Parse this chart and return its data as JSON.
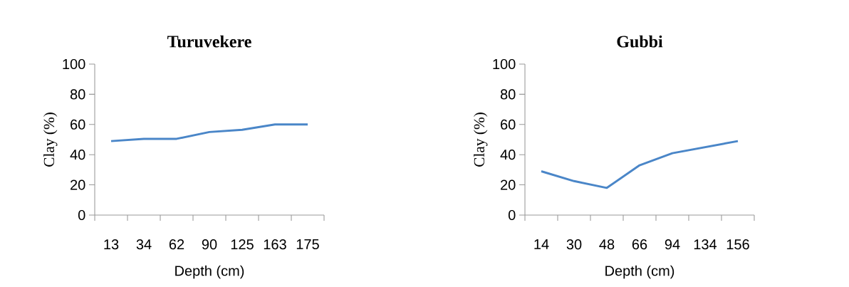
{
  "chart_data": [
    {
      "type": "line",
      "title": "Turuvekere",
      "xlabel": "Depth (cm)",
      "ylabel": "Clay (%)",
      "categories": [
        "13",
        "34",
        "62",
        "90",
        "125",
        "163",
        "175"
      ],
      "values": [
        49,
        50.5,
        50.5,
        55,
        56.5,
        60,
        60
      ],
      "color": "#4a86c8",
      "ylim": [
        0,
        100
      ],
      "yticks": [
        0,
        20,
        40,
        60,
        80,
        100
      ]
    },
    {
      "type": "line",
      "title": "Gubbi",
      "xlabel": "Depth (cm)",
      "ylabel": "Clay (%)",
      "categories": [
        "14",
        "30",
        "48",
        "66",
        "94",
        "134",
        "156"
      ],
      "values": [
        29,
        22.5,
        18,
        33,
        41,
        45,
        49
      ],
      "color": "#4a86c8",
      "ylim": [
        0,
        100
      ],
      "yticks": [
        0,
        20,
        40,
        60,
        80,
        100
      ]
    }
  ]
}
